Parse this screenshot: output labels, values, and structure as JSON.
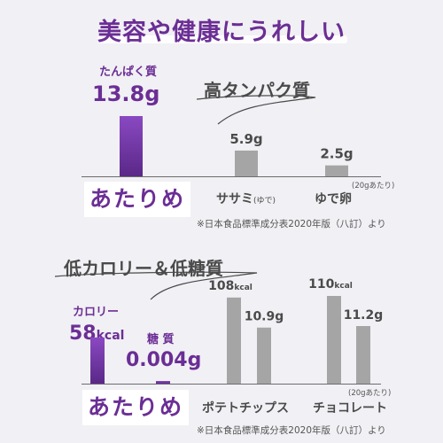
{
  "headline": "美容や健康にうれしい",
  "colors": {
    "accent": "#6b2e95",
    "bar_accent": "#7a3cae",
    "bar_gray": "#a5a5a5",
    "background": "#f1f0f4"
  },
  "section1": {
    "title": "高タンパク質",
    "ours_label": "たんぱく質",
    "ours_value": "13.8g",
    "atarime": "あたりめ",
    "foods": [
      {
        "name": "ササミ",
        "qualifier": "(ゆで)",
        "value_label": "5.9g"
      },
      {
        "name": "ゆで卵",
        "qualifier": "",
        "value_label": "2.5g"
      }
    ],
    "per_note": "(20gあたり)",
    "source": "※日本食品標準成分表2020年版（八訂）より"
  },
  "section2": {
    "title": "低カロリー＆低糖質",
    "calorie_label": "カロリー",
    "calorie_number": "58",
    "calorie_unit": "kcal",
    "sugar_label": "糖 質",
    "sugar_value": "0.004g",
    "atarime": "あたりめ",
    "foods": [
      {
        "name": "ポテトチップス",
        "kcal_number": "108",
        "kcal_unit": "kcal",
        "sugar_label": "10.9g"
      },
      {
        "name": "チョコレート",
        "kcal_number": "110",
        "kcal_unit": "kcal",
        "sugar_label": "11.2g"
      }
    ],
    "per_note": "(20gあたり)",
    "source": "※日本食品標準成分表2020年版（八訂）より"
  },
  "chart_data": [
    {
      "type": "bar",
      "title": "高タンパク質",
      "series": [
        {
          "name": "たんぱく質",
          "values": [
            13.8,
            5.9,
            2.5
          ]
        }
      ],
      "categories": [
        "あたりめ",
        "ササミ(ゆで)",
        "ゆで卵"
      ],
      "unit": "g",
      "ylim": [
        0,
        13.8
      ]
    },
    {
      "type": "bar",
      "title": "低カロリー＆低糖質",
      "series": [
        {
          "name": "カロリー",
          "unit": "kcal",
          "values": [
            58,
            108,
            110
          ]
        },
        {
          "name": "糖 質",
          "unit": "g",
          "values": [
            0.004,
            10.9,
            11.2
          ]
        }
      ],
      "categories": [
        "あたりめ",
        "ポテトチップス",
        "チョコレート"
      ]
    }
  ]
}
